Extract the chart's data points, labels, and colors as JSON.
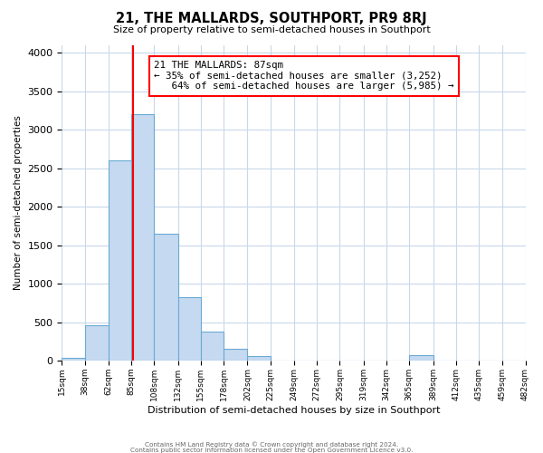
{
  "title": "21, THE MALLARDS, SOUTHPORT, PR9 8RJ",
  "subtitle": "Size of property relative to semi-detached houses in Southport",
  "xlabel": "Distribution of semi-detached houses by size in Southport",
  "ylabel": "Number of semi-detached properties",
  "bin_labels": [
    "15sqm",
    "38sqm",
    "62sqm",
    "85sqm",
    "108sqm",
    "132sqm",
    "155sqm",
    "178sqm",
    "202sqm",
    "225sqm",
    "249sqm",
    "272sqm",
    "295sqm",
    "319sqm",
    "342sqm",
    "365sqm",
    "389sqm",
    "412sqm",
    "435sqm",
    "459sqm",
    "482sqm"
  ],
  "bin_edges": [
    15,
    38,
    62,
    85,
    108,
    132,
    155,
    178,
    202,
    225,
    249,
    272,
    295,
    319,
    342,
    365,
    389,
    412,
    435,
    459,
    482
  ],
  "bar_heights": [
    30,
    460,
    2600,
    3200,
    1650,
    820,
    380,
    155,
    60,
    5,
    0,
    0,
    0,
    0,
    0,
    75,
    0,
    0,
    0,
    0
  ],
  "bar_color": "#c5d9f0",
  "bar_edge_color": "#6aaad4",
  "property_line_x": 87,
  "property_line_color": "red",
  "annotation_line1": "21 THE MALLARDS: 87sqm",
  "annotation_line2": "← 35% of semi-detached houses are smaller (3,252)",
  "annotation_line3": "   64% of semi-detached houses are larger (5,985) →",
  "annotation_box_color": "white",
  "annotation_box_edge_color": "red",
  "ylim": [
    0,
    4100
  ],
  "yticks": [
    0,
    500,
    1000,
    1500,
    2000,
    2500,
    3000,
    3500,
    4000
  ],
  "footer_line1": "Contains HM Land Registry data © Crown copyright and database right 2024.",
  "footer_line2": "Contains public sector information licensed under the Open Government Licence v3.0.",
  "background_color": "#ffffff",
  "grid_color": "#c8d8ea"
}
